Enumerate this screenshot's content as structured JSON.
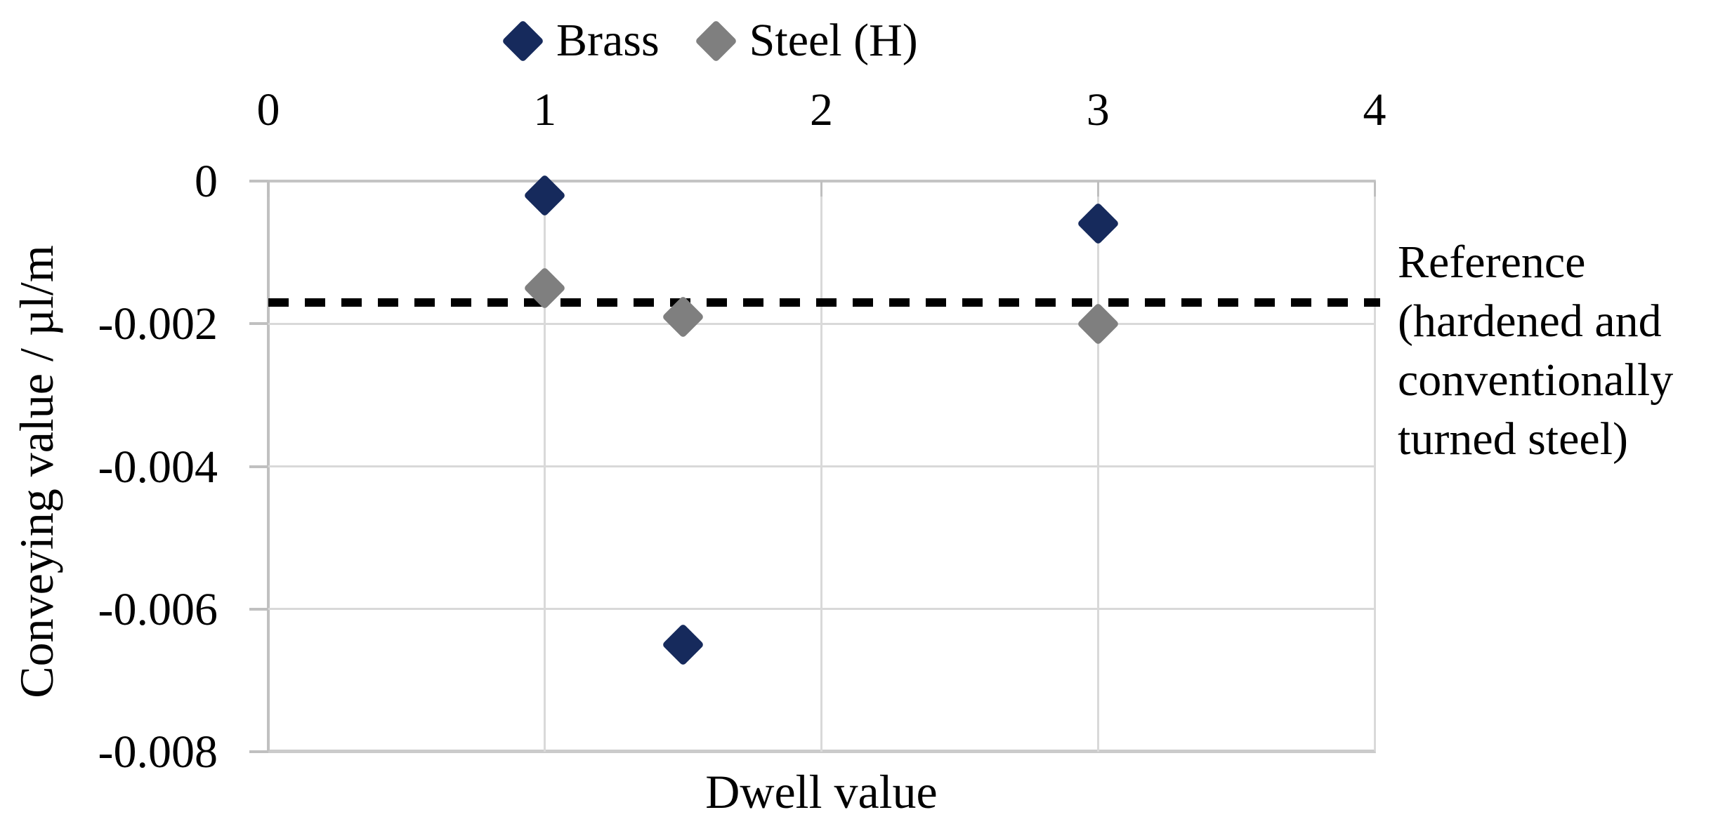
{
  "chart_data": {
    "type": "scatter",
    "title": "",
    "xlabel": "Dwell value",
    "ylabel": "Conveying value / µl/m",
    "xlim": [
      0,
      4
    ],
    "ylim": [
      -0.008,
      0
    ],
    "x_axis_position": "top",
    "grid": true,
    "legend_position": "top-center",
    "x_ticks": [
      {
        "label": "0",
        "value": 0
      },
      {
        "label": "1",
        "value": 1
      },
      {
        "label": "2",
        "value": 2
      },
      {
        "label": "3",
        "value": 3
      },
      {
        "label": "4",
        "value": 4
      }
    ],
    "y_ticks": [
      {
        "label": "0",
        "value": 0
      },
      {
        "label": "-0.002",
        "value": -0.002
      },
      {
        "label": "-0.004",
        "value": -0.004
      },
      {
        "label": "-0.006",
        "value": -0.006
      },
      {
        "label": "-0.008",
        "value": -0.008
      }
    ],
    "series": [
      {
        "name": "Brass",
        "marker": "diamond",
        "color": "#162A5C",
        "points": [
          [
            1,
            -0.0002
          ],
          [
            1.5,
            -0.0065
          ],
          [
            3,
            -0.0006
          ]
        ]
      },
      {
        "name": "Steel (H)",
        "marker": "diamond",
        "color": "#7F7F7F",
        "points": [
          [
            1,
            -0.0015
          ],
          [
            1.5,
            -0.0019
          ],
          [
            3,
            -0.002
          ]
        ]
      }
    ],
    "reference_line": {
      "value": -0.0017,
      "style": "dashed",
      "color": "#000000"
    }
  },
  "annotation": {
    "lines": [
      "Reference",
      "(hardened and",
      "conventionally",
      "turned steel)"
    ]
  },
  "colors": {
    "gridline": "#D9D9D9",
    "axis": "#C0C0C0",
    "tick_mark": "#BFBFBF",
    "text": "#000000",
    "background": "#FFFFFF"
  }
}
